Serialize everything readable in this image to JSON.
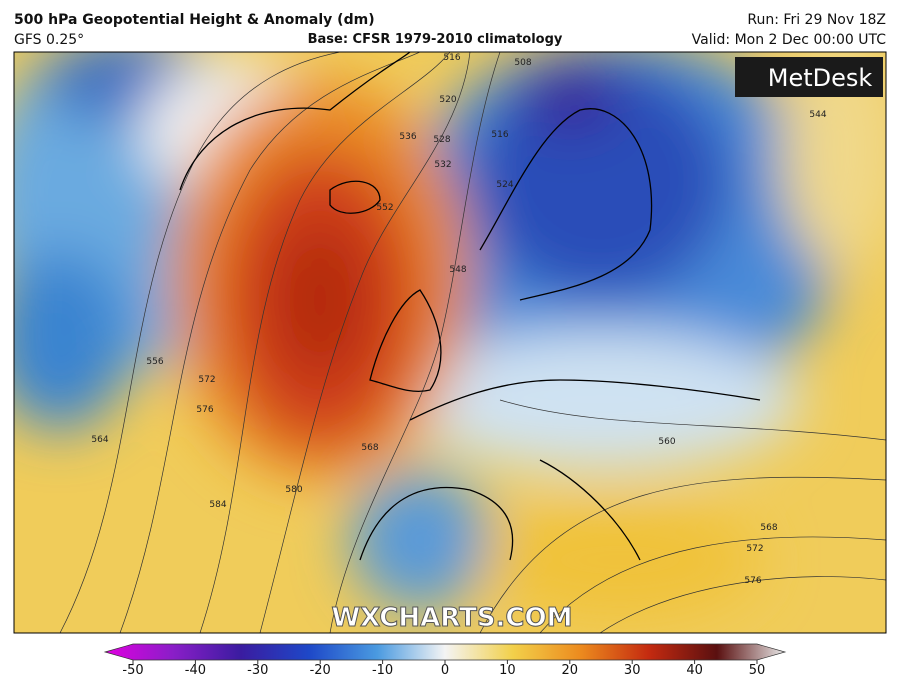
{
  "header": {
    "title": "500 hPa Geopotential Height & Anomaly (dm)",
    "model": "GFS 0.25°",
    "base": "Base: CFSR 1979-2010 climatology",
    "run": "Run: Fri 29 Nov 18Z",
    "valid": "Valid: Mon 2 Dec 00:00 UTC"
  },
  "logo": "MetDesk",
  "watermark": "WXCHARTS.COM",
  "contour_labels": [
    516,
    508,
    520,
    528,
    532,
    536,
    516,
    524,
    552,
    548,
    556,
    572,
    576,
    564,
    568,
    580,
    584,
    560,
    568,
    572,
    576,
    544
  ],
  "colorbar": {
    "range": [
      -50,
      50
    ],
    "ticks": [
      -50,
      -40,
      -30,
      -20,
      -10,
      0,
      10,
      20,
      30,
      40,
      50
    ]
  }
}
